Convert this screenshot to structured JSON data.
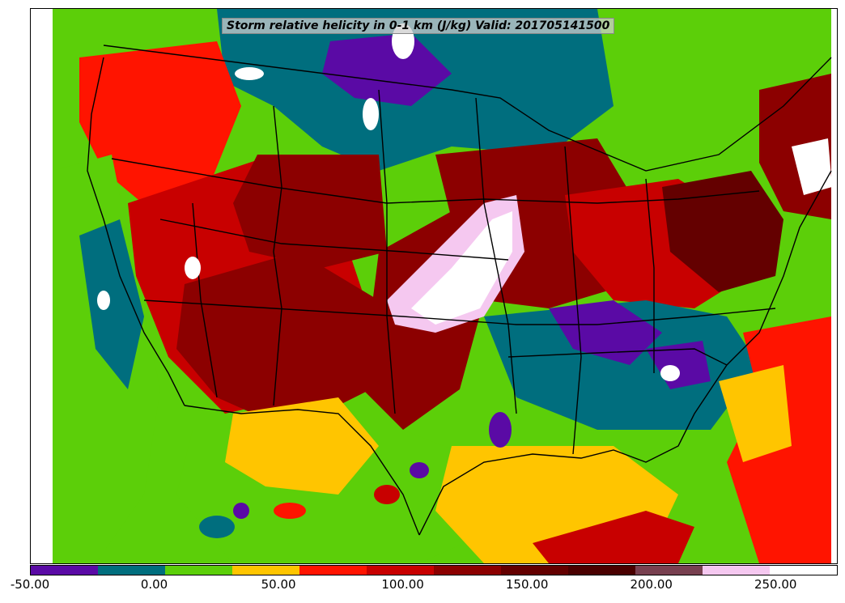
{
  "title": "Storm relative helicity in 0-1 km (J/kg) Valid: 201705141500",
  "colorbar": {
    "colors": [
      "#5a0aa5",
      "#006e7e",
      "#5ccf09",
      "#ffc500",
      "#ff1400",
      "#c80000",
      "#8c0000",
      "#640000",
      "#4a0000",
      "#784050",
      "#f5c8f0",
      "#ffffff"
    ],
    "tick_labels": [
      "-50.00",
      "0.00",
      "50.00",
      "100.00",
      "150.00",
      "200.00",
      "250.00"
    ],
    "min": -50,
    "max": 275,
    "step": 25
  },
  "map": {
    "projection": "lambert-conformal",
    "region": "CONUS",
    "overlays": [
      "state-boundaries",
      "country-boundaries",
      "coastlines"
    ],
    "regions": [
      {
        "name": "pacific-ocean",
        "color": "#5ccf09"
      },
      {
        "name": "northwest",
        "color": "#ff1400"
      },
      {
        "name": "great-basin",
        "color": "#c80000"
      },
      {
        "name": "four-corners",
        "color": "#8c0000"
      },
      {
        "name": "colorado-high",
        "color": "#8c0000"
      },
      {
        "name": "northern-plains",
        "color": "#006e7e"
      },
      {
        "name": "dakotas-low",
        "color": "#5a0aa5"
      },
      {
        "name": "central-plains-max",
        "color": "#f5c8f0"
      },
      {
        "name": "mississippi-valley",
        "color": "#8c0000"
      },
      {
        "name": "ohio-valley",
        "color": "#c80000"
      },
      {
        "name": "mid-atlantic",
        "color": "#640000"
      },
      {
        "name": "northeast-max",
        "color": "#ffffff"
      },
      {
        "name": "southeast",
        "color": "#006e7e"
      },
      {
        "name": "southeast-low",
        "color": "#5a0aa5"
      },
      {
        "name": "gulf",
        "color": "#ffc500"
      },
      {
        "name": "texas-south",
        "color": "#5ccf09"
      },
      {
        "name": "gulf-band",
        "color": "#c80000"
      },
      {
        "name": "atlantic",
        "color": "#ff1400"
      }
    ]
  }
}
